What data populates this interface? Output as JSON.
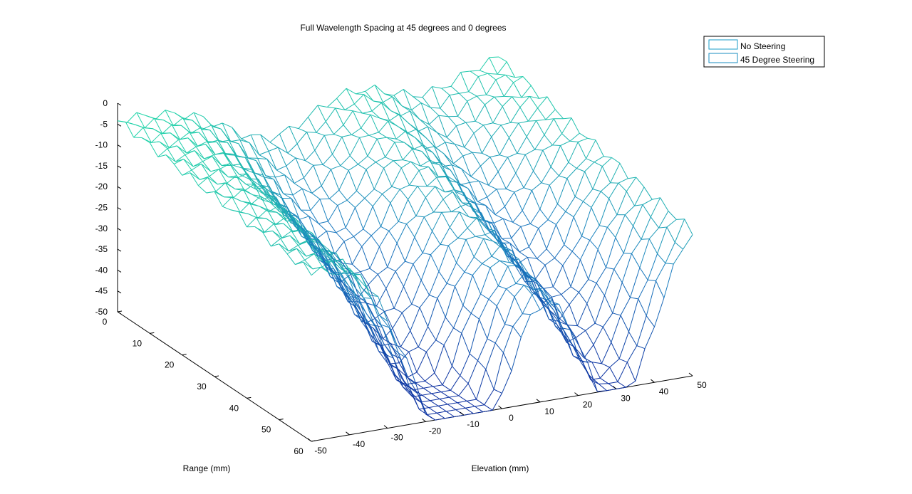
{
  "chart_data": {
    "type": "surface",
    "title": "Full Wavelength Spacing at 45 degrees and 0 degrees",
    "xlabel": "Elevation (mm)",
    "ylabel": "Range (mm)",
    "zlabel": "",
    "xlim": [
      -50,
      50
    ],
    "ylim": [
      0,
      60
    ],
    "zlim": [
      -50,
      0
    ],
    "xticks": [
      "-50",
      "-40",
      "-30",
      "-20",
      "-10",
      "0",
      "10",
      "20",
      "30",
      "40",
      "50"
    ],
    "yticks": [
      "0",
      "10",
      "20",
      "30",
      "40",
      "50",
      "60"
    ],
    "zticks": [
      "0",
      "-5",
      "-10",
      "-15",
      "-20",
      "-25",
      "-30",
      "-35",
      "-40",
      "-45",
      "-50"
    ],
    "grid": false,
    "legend_position": "top-right",
    "colormap": [
      "#0b2fa0",
      "#1a7cc0",
      "#22d8a8"
    ],
    "series": [
      {
        "name": "No Steering",
        "color": "#1a9cc8"
      },
      {
        "name": "45 Degree Steering",
        "color": "#1a8cc0"
      }
    ],
    "surface_description_values": {
      "z_min": -50,
      "z_max": -3
    }
  }
}
